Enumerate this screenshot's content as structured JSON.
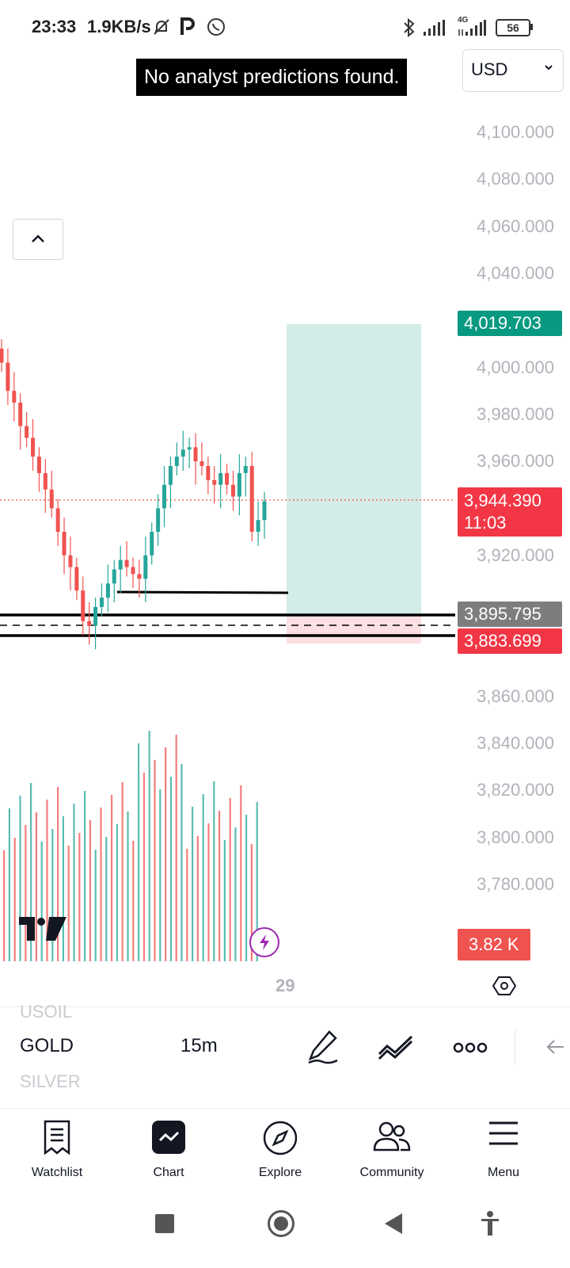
{
  "status_bar": {
    "time": "23:33",
    "net_speed": "1.9KB/s",
    "network_type": "4G",
    "battery": "56",
    "icons": [
      "mute-bell-icon",
      "p-app-icon",
      "whatsapp-icon",
      "bluetooth-icon",
      "signal-icon",
      "signal-4g-icon",
      "battery-icon"
    ]
  },
  "toast": {
    "message": "No analyst predictions found."
  },
  "currency": {
    "selected": "USD"
  },
  "price_axis": {
    "labels": [
      "4,100.000",
      "4,080.000",
      "4,060.000",
      "4,040.000",
      "4,000.000",
      "3,980.000",
      "3,960.000",
      "3,920.000",
      "3,860.000",
      "3,840.000",
      "3,820.000",
      "3,800.000",
      "3,780.000"
    ]
  },
  "badges": {
    "target": "4,019.703",
    "last_price": "3,944.390",
    "countdown": "11:03",
    "entry": "3,895.795",
    "stop": "3,883.699",
    "volume": "3.82 K"
  },
  "time_axis": {
    "label": "29"
  },
  "colors": {
    "up": "#26a69a",
    "down": "#ef5350",
    "target_badge": "#089981",
    "stop_badge": "#f23645",
    "entry_badge": "#7d7d7d",
    "target_zone": "#d4ece7",
    "stop_zone": "#fbdfe2",
    "volume_badge": "#ef5350"
  },
  "symbol_bar": {
    "prev_symbol": "USOIL",
    "symbol": "GOLD",
    "next_symbol": "SILVER",
    "interval": "15m",
    "icons": [
      "draw-pen-icon",
      "indicators-icon",
      "more-icon",
      "back-arrow-icon"
    ]
  },
  "bottom_nav": {
    "items": [
      {
        "label": "Watchlist",
        "icon": "watchlist-icon"
      },
      {
        "label": "Chart",
        "icon": "chart-icon"
      },
      {
        "label": "Explore",
        "icon": "compass-icon"
      },
      {
        "label": "Community",
        "icon": "community-icon"
      },
      {
        "label": "Menu",
        "icon": "menu-icon"
      }
    ]
  },
  "chart_data": {
    "type": "candlestick",
    "symbol": "GOLD",
    "interval": "15m",
    "price_range": [
      3770,
      4110
    ],
    "last_price": 3944.39,
    "target": 4019.703,
    "entry": 3895.795,
    "stop": 3883.699,
    "support_line": 3903,
    "candles_close_approx": [
      4002,
      3990,
      3985,
      3975,
      3970,
      3962,
      3955,
      3948,
      3940,
      3930,
      3920,
      3915,
      3905,
      3892,
      3890,
      3898,
      3902,
      3908,
      3914,
      3918,
      3915,
      3912,
      3910,
      3920,
      3930,
      3940,
      3950,
      3958,
      3962,
      3965,
      3966,
      3960,
      3958,
      3952,
      3950,
      3955,
      3950,
      3945,
      3955,
      3958,
      3930,
      3935,
      3943
    ],
    "volume_last": "3.82 K"
  }
}
